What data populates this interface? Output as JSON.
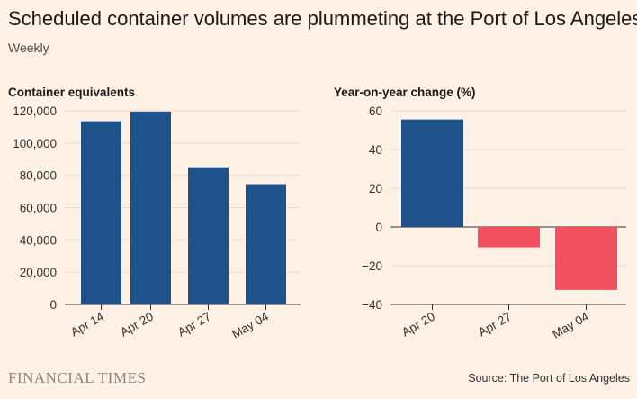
{
  "header": {
    "title": "Scheduled container volumes are plummeting at the Port of Los Angeles",
    "subtitle": "Weekly"
  },
  "footer": {
    "logo": "FINANCIAL TIMES",
    "source": "Source: The Port of Los Angeles"
  },
  "colors": {
    "background": "#FFF1E5",
    "positive_bar": "#1F528B",
    "negative_bar": "#F2505F",
    "gridline": "#E6D9CE",
    "axis": "#33302E"
  },
  "chart_data": [
    {
      "type": "bar",
      "title": "Container equivalents",
      "categories": [
        "Apr 14",
        "Apr 20",
        "Apr 27",
        "May 04"
      ],
      "values": [
        113500,
        119500,
        85000,
        74500
      ],
      "ylim": [
        0,
        120000
      ],
      "yticks": [
        0,
        20000,
        40000,
        60000,
        80000,
        100000,
        120000
      ],
      "ytick_labels": [
        "0",
        "20,000",
        "40,000",
        "60,000",
        "80,000",
        "100,000",
        "120,000"
      ],
      "grid": true
    },
    {
      "type": "bar",
      "title": "Year-on-year change (%)",
      "categories": [
        "Apr 20",
        "Apr 27",
        "May 04"
      ],
      "values": [
        55.5,
        -10.5,
        -32.5
      ],
      "ylim": [
        -40,
        60
      ],
      "yticks": [
        -40,
        -20,
        0,
        20,
        40,
        60
      ],
      "ytick_labels": [
        "−40",
        "−20",
        "0",
        "20",
        "40",
        "60"
      ],
      "grid": true
    }
  ]
}
